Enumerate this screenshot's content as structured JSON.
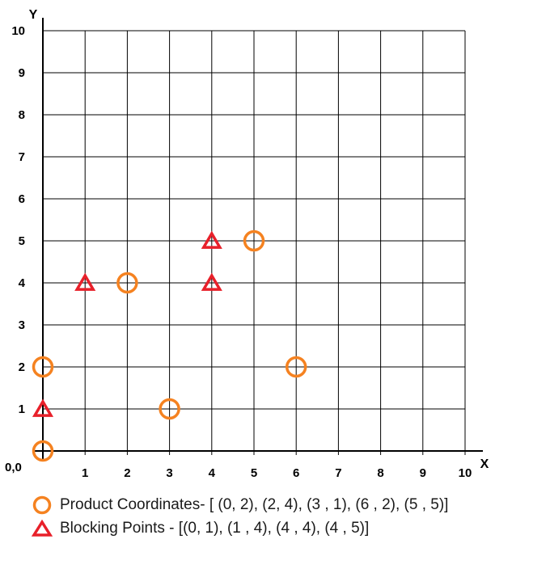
{
  "chart_data": {
    "type": "scatter",
    "title": "",
    "xlabel": "X",
    "ylabel": "Y",
    "origin_label": "0,0",
    "xlim": [
      0,
      10
    ],
    "ylim": [
      0,
      10
    ],
    "x_ticks": [
      "1",
      "2",
      "3",
      "4",
      "5",
      "6",
      "7",
      "8",
      "9",
      "10"
    ],
    "y_ticks": [
      "1",
      "2",
      "3",
      "4",
      "5",
      "6",
      "7",
      "8",
      "9",
      "10"
    ],
    "grid": true,
    "legend_position": "bottom",
    "series": [
      {
        "name": "Product Coordinates- [ (0, 2), (2, 4), (3 , 1), (6 , 2), (5 , 5)]",
        "marker": "circle",
        "color": "#f58220",
        "points": [
          {
            "x": 0,
            "y": 0
          },
          {
            "x": 0,
            "y": 2
          },
          {
            "x": 2,
            "y": 4
          },
          {
            "x": 3,
            "y": 1
          },
          {
            "x": 6,
            "y": 2
          },
          {
            "x": 5,
            "y": 5
          }
        ]
      },
      {
        "name": "Blocking Points - [(0, 1), (1 , 4), (4 , 4), (4 , 5)]",
        "marker": "triangle",
        "color": "#e8202a",
        "points": [
          {
            "x": 0,
            "y": 1
          },
          {
            "x": 1,
            "y": 4
          },
          {
            "x": 4,
            "y": 4
          },
          {
            "x": 4,
            "y": 5
          }
        ]
      }
    ]
  }
}
